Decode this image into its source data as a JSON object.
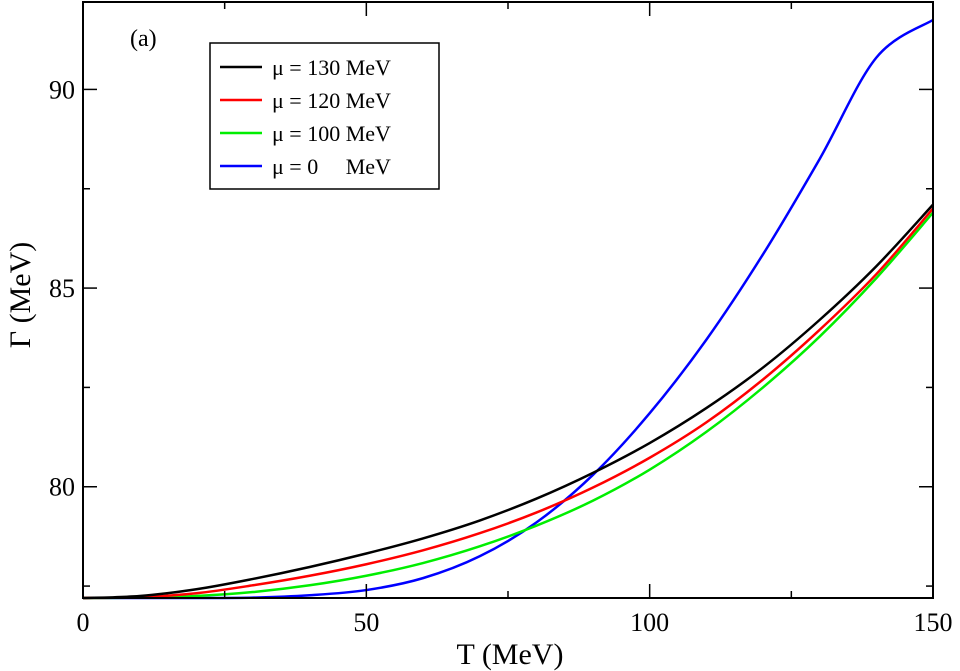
{
  "chart_data": {
    "type": "line",
    "panel_label": "(a)",
    "xlabel": "T (MeV)",
    "ylabel": "Γ (MeV)",
    "xlim": [
      0,
      150
    ],
    "ylim": [
      77.2,
      92.2
    ],
    "xticks": [
      0,
      50,
      100,
      150
    ],
    "xtick_labels": [
      "0",
      "50",
      "100",
      "150"
    ],
    "yticks": [
      80,
      85,
      90
    ],
    "ytick_labels": [
      "80",
      "85",
      "90"
    ],
    "legend_position": "top-left",
    "x": [
      0,
      10,
      20,
      30,
      40,
      50,
      60,
      70,
      80,
      90,
      100,
      110,
      120,
      130,
      140,
      150
    ],
    "series": [
      {
        "name": "μ = 130 MeV",
        "color": "#000000",
        "values": [
          77.2,
          77.25,
          77.42,
          77.68,
          77.98,
          78.32,
          78.7,
          79.15,
          79.7,
          80.35,
          81.1,
          81.98,
          83.0,
          84.2,
          85.55,
          87.1
        ]
      },
      {
        "name": "μ = 120 MeV",
        "color": "#ff0000",
        "values": [
          77.2,
          77.22,
          77.32,
          77.52,
          77.76,
          78.05,
          78.4,
          78.83,
          79.35,
          79.98,
          80.73,
          81.62,
          82.7,
          83.95,
          85.35,
          87.0
        ]
      },
      {
        "name": "μ = 100 MeV",
        "color": "#00ee00",
        "values": [
          77.2,
          77.21,
          77.25,
          77.35,
          77.52,
          77.76,
          78.08,
          78.5,
          79.02,
          79.65,
          80.43,
          81.38,
          82.5,
          83.78,
          85.25,
          86.9
        ]
      },
      {
        "name": "μ = 0     MeV",
        "color": "#0000ff",
        "values": [
          77.2,
          77.2,
          77.2,
          77.21,
          77.27,
          77.4,
          77.7,
          78.25,
          79.1,
          80.3,
          81.85,
          83.7,
          85.85,
          88.25,
          90.8,
          91.75
        ]
      }
    ]
  }
}
